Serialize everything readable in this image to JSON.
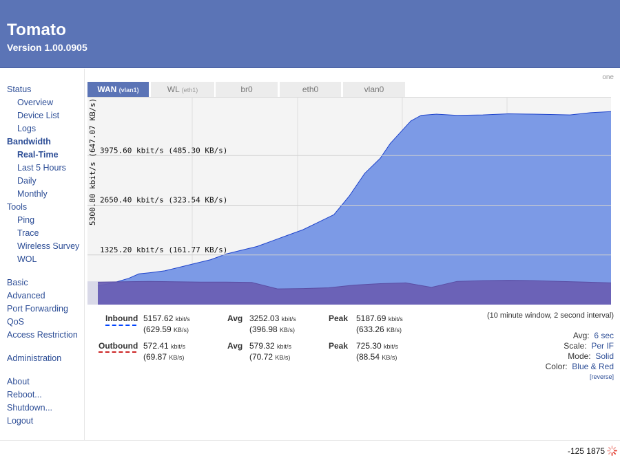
{
  "header": {
    "title": "Tomato",
    "version": "Version 1.00.0905"
  },
  "sidebar": {
    "items": [
      {
        "label": "Status",
        "type": "section"
      },
      {
        "label": "Overview",
        "type": "sub"
      },
      {
        "label": "Device List",
        "type": "sub"
      },
      {
        "label": "Logs",
        "type": "sub"
      },
      {
        "label": "Bandwidth",
        "type": "section-active"
      },
      {
        "label": "Real-Time",
        "type": "sub-current"
      },
      {
        "label": "Last 5 Hours",
        "type": "sub"
      },
      {
        "label": "Daily",
        "type": "sub"
      },
      {
        "label": "Monthly",
        "type": "sub"
      },
      {
        "label": "Tools",
        "type": "section"
      },
      {
        "label": "Ping",
        "type": "sub"
      },
      {
        "label": "Trace",
        "type": "sub"
      },
      {
        "label": "Wireless Survey",
        "type": "sub"
      },
      {
        "label": "WOL",
        "type": "sub"
      },
      {
        "label": "Basic",
        "type": "section"
      },
      {
        "label": "Advanced",
        "type": "section"
      },
      {
        "label": "Port Forwarding",
        "type": "section"
      },
      {
        "label": "QoS",
        "type": "section"
      },
      {
        "label": "Access Restriction",
        "type": "section"
      },
      {
        "label": "Administration",
        "type": "section"
      },
      {
        "label": "About",
        "type": "section"
      },
      {
        "label": "Reboot...",
        "type": "section"
      },
      {
        "label": "Shutdown...",
        "type": "section"
      },
      {
        "label": "Logout",
        "type": "section"
      }
    ]
  },
  "main": {
    "one_link": "one",
    "tabs": [
      {
        "label": "WAN",
        "sub": "(vlan1)",
        "active": true
      },
      {
        "label": "WL",
        "sub": "(eth1)",
        "active": false
      },
      {
        "label": "br0",
        "sub": "",
        "active": false
      },
      {
        "label": "eth0",
        "sub": "",
        "active": false
      },
      {
        "label": "vlan0",
        "sub": "",
        "active": false
      }
    ],
    "window_note": "(10 minute window, 2 second interval)",
    "stats": {
      "inbound": {
        "label": "Inbound",
        "color": "#0044ff",
        "current": "5157.62",
        "current_unit": "kbit/s",
        "current_kb": "(629.59",
        "current_kb_unit": "KB/s)",
        "avg_label": "Avg",
        "avg": "3252.03",
        "avg_unit": "kbit/s",
        "avg_kb": "(396.98",
        "avg_kb_unit": "KB/s)",
        "peak_label": "Peak",
        "peak": "5187.69",
        "peak_unit": "kbit/s",
        "peak_kb": "(633.26",
        "peak_kb_unit": "KB/s)"
      },
      "outbound": {
        "label": "Outbound",
        "color": "#cc2222",
        "current": "572.41",
        "current_unit": "kbit/s",
        "current_kb": "(69.87",
        "current_kb_unit": "KB/s)",
        "avg_label": "Avg",
        "avg": "579.32",
        "avg_unit": "kbit/s",
        "avg_kb": "(70.72",
        "avg_kb_unit": "KB/s)",
        "peak_label": "Peak",
        "peak": "725.30",
        "peak_unit": "kbit/s",
        "peak_kb": "(88.54",
        "peak_kb_unit": "KB/s)"
      }
    },
    "options": {
      "avg_label": "Avg:",
      "avg_value": "6 sec",
      "scale_label": "Scale:",
      "scale_value": "Per IF",
      "mode_label": "Mode:",
      "mode_value": "Solid",
      "color_label": "Color:",
      "color_value": "Blue & Red",
      "reverse": "[reverse]"
    }
  },
  "chart_data": {
    "type": "area",
    "ylabel": "5300.80 kbit/s (647.07 KB/s)",
    "ylim": [
      0,
      5300.8
    ],
    "y_gridlines": [
      {
        "value": 1325.2,
        "label": "1325.20 kbit/s (161.77 KB/s)"
      },
      {
        "value": 2650.4,
        "label": "2650.40 kbit/s (323.54 KB/s)"
      },
      {
        "value": 3975.6,
        "label": "3975.60 kbit/s (485.30 KB/s)"
      }
    ],
    "x_range": [
      0,
      100
    ],
    "series": [
      {
        "name": "Inbound",
        "color": "#7c9ae6",
        "line": "#1f44cc",
        "x": [
          0,
          3,
          6,
          8,
          10,
          13,
          16,
          19,
          22,
          25,
          28,
          31,
          34,
          37,
          40,
          43,
          46,
          49,
          52,
          55,
          57,
          59,
          61,
          63,
          66,
          70,
          75,
          80,
          85,
          89,
          92,
          96,
          100
        ],
        "values": [
          500,
          580,
          700,
          820,
          850,
          900,
          1000,
          1100,
          1200,
          1350,
          1450,
          1550,
          1700,
          1850,
          2000,
          2200,
          2400,
          2900,
          3500,
          3900,
          4300,
          4600,
          4900,
          5050,
          5080,
          5050,
          5060,
          5090,
          5080,
          5070,
          5060,
          5120,
          5150
        ]
      },
      {
        "name": "Outbound",
        "color": "#6a5fb4",
        "line": "#5a4da3",
        "x": [
          0,
          5,
          10,
          15,
          20,
          25,
          30,
          35,
          40,
          45,
          50,
          55,
          60,
          65,
          70,
          75,
          80,
          85,
          90,
          95,
          100
        ],
        "values": [
          600,
          610,
          620,
          610,
          600,
          600,
          590,
          420,
          430,
          450,
          520,
          560,
          580,
          460,
          620,
          640,
          650,
          640,
          620,
          600,
          580
        ]
      }
    ]
  },
  "footer": {
    "text": "-125 1875"
  }
}
